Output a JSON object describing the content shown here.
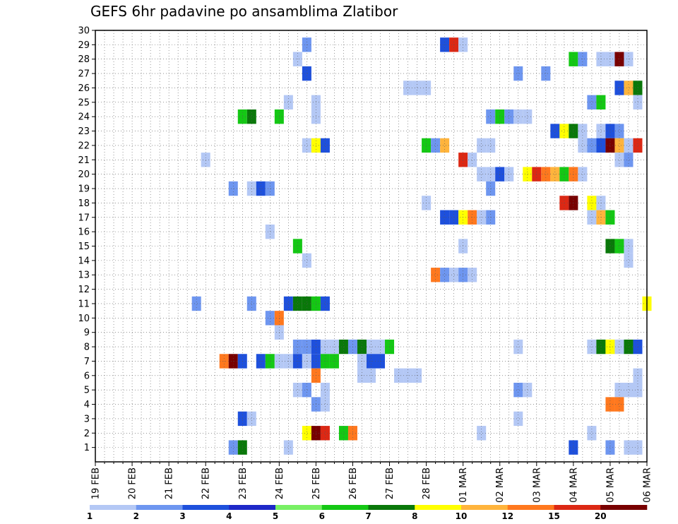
{
  "chart_data": {
    "type": "heatmap",
    "title": "GEFS 6hr padavine po ansamblima Zlatibor",
    "xlabel": "",
    "ylabel": "",
    "x_tick_labels": [
      "19 FEB",
      "20 FEB",
      "21 FEB",
      "22 FEB",
      "23 FEB",
      "24 FEB",
      "25 FEB",
      "26 FEB",
      "27 FEB",
      "28 FEB",
      "01 MAR",
      "02 MAR",
      "03 MAR",
      "04 MAR",
      "05 MAR",
      "06 MAR"
    ],
    "xlim_steps": [
      0,
      60
    ],
    "y_tick_labels": [
      "1",
      "2",
      "3",
      "4",
      "5",
      "6",
      "7",
      "8",
      "9",
      "10",
      "11",
      "12",
      "13",
      "14",
      "15",
      "16",
      "17",
      "18",
      "19",
      "20",
      "21",
      "22",
      "23",
      "24",
      "25",
      "26",
      "27",
      "28",
      "29",
      "30"
    ],
    "ylim": [
      0,
      30
    ],
    "grid": true,
    "colorbar": {
      "labels": [
        "1",
        "2",
        "3",
        "4",
        "5",
        "6",
        "7",
        "8",
        "10",
        "12",
        "15",
        "20"
      ],
      "colors": [
        "#b4c8f5",
        "#6e96f0",
        "#1e50dc",
        "#1e28c8",
        "#78f064",
        "#14c814",
        "#0a780a",
        "#ffff00",
        "#ffb43c",
        "#ff781e",
        "#dc2814",
        "#780000"
      ],
      "color_order": [
        "#b4c8f5",
        "#6e96f0",
        "#1e50dc",
        "#78f064",
        "#14c814",
        "#0a780a",
        "#ffff00",
        "#ffb43c",
        "#ff781e",
        "#dc2814",
        "#780000"
      ]
    },
    "cells_note": "each cell: [time_step_6h_from_19FEB00, member, color_index]",
    "cells": [
      [
        23,
        29,
        2
      ],
      [
        38,
        29,
        3
      ],
      [
        39,
        29,
        10
      ],
      [
        40,
        29,
        1
      ],
      [
        22,
        28,
        1
      ],
      [
        52,
        28,
        5
      ],
      [
        53,
        28,
        2
      ],
      [
        55,
        28,
        1
      ],
      [
        56,
        28,
        1
      ],
      [
        57,
        28,
        11
      ],
      [
        58,
        28,
        1
      ],
      [
        23,
        27,
        3
      ],
      [
        46,
        27,
        2
      ],
      [
        49,
        27,
        2
      ],
      [
        34,
        26,
        1
      ],
      [
        35,
        26,
        1
      ],
      [
        36,
        26,
        1
      ],
      [
        57,
        26,
        3
      ],
      [
        58,
        26,
        8
      ],
      [
        59,
        26,
        6
      ],
      [
        21,
        25,
        1
      ],
      [
        24,
        25,
        1
      ],
      [
        54,
        25,
        2
      ],
      [
        55,
        25,
        5
      ],
      [
        59,
        25,
        1
      ],
      [
        24,
        24,
        1
      ],
      [
        20,
        24,
        5
      ],
      [
        16,
        24,
        5
      ],
      [
        17,
        24,
        6
      ],
      [
        43,
        24,
        2
      ],
      [
        44,
        24,
        5
      ],
      [
        45,
        24,
        2
      ],
      [
        46,
        24,
        1
      ],
      [
        47,
        24,
        1
      ],
      [
        50,
        23,
        3
      ],
      [
        51,
        23,
        7
      ],
      [
        52,
        23,
        6
      ],
      [
        53,
        23,
        1
      ],
      [
        55,
        23,
        1
      ],
      [
        56,
        23,
        3
      ],
      [
        57,
        23,
        2
      ],
      [
        23,
        22,
        1
      ],
      [
        24,
        22,
        7
      ],
      [
        25,
        22,
        3
      ],
      [
        36,
        22,
        5
      ],
      [
        37,
        22,
        2
      ],
      [
        38,
        22,
        8
      ],
      [
        42,
        22,
        1
      ],
      [
        43,
        22,
        1
      ],
      [
        53,
        22,
        1
      ],
      [
        54,
        22,
        2
      ],
      [
        55,
        22,
        3
      ],
      [
        56,
        22,
        11
      ],
      [
        57,
        22,
        8
      ],
      [
        58,
        22,
        1
      ],
      [
        59,
        22,
        10
      ],
      [
        12,
        21,
        1
      ],
      [
        40,
        21,
        10
      ],
      [
        41,
        21,
        1
      ],
      [
        57,
        21,
        1
      ],
      [
        58,
        21,
        2
      ],
      [
        42,
        20,
        1
      ],
      [
        43,
        20,
        1
      ],
      [
        44,
        20,
        3
      ],
      [
        45,
        20,
        1
      ],
      [
        47,
        20,
        7
      ],
      [
        48,
        20,
        10
      ],
      [
        49,
        20,
        9
      ],
      [
        50,
        20,
        8
      ],
      [
        51,
        20,
        5
      ],
      [
        52,
        20,
        9
      ],
      [
        53,
        20,
        1
      ],
      [
        15,
        19,
        2
      ],
      [
        17,
        19,
        1
      ],
      [
        18,
        19,
        3
      ],
      [
        19,
        19,
        2
      ],
      [
        43,
        19,
        2
      ],
      [
        36,
        18,
        1
      ],
      [
        51,
        18,
        10
      ],
      [
        52,
        18,
        11
      ],
      [
        54,
        18,
        7
      ],
      [
        55,
        18,
        1
      ],
      [
        38,
        17,
        3
      ],
      [
        39,
        17,
        3
      ],
      [
        40,
        17,
        7
      ],
      [
        41,
        17,
        9
      ],
      [
        42,
        17,
        1
      ],
      [
        43,
        17,
        2
      ],
      [
        54,
        17,
        1
      ],
      [
        55,
        17,
        8
      ],
      [
        56,
        17,
        5
      ],
      [
        19,
        16,
        1
      ],
      [
        22,
        15,
        5
      ],
      [
        40,
        15,
        1
      ],
      [
        56,
        15,
        6
      ],
      [
        57,
        15,
        5
      ],
      [
        58,
        15,
        1
      ],
      [
        58,
        14,
        1
      ],
      [
        23,
        14,
        1
      ],
      [
        37,
        13,
        9
      ],
      [
        38,
        13,
        2
      ],
      [
        39,
        13,
        1
      ],
      [
        40,
        13,
        2
      ],
      [
        41,
        13,
        1
      ],
      [
        11,
        11,
        2
      ],
      [
        17,
        11,
        2
      ],
      [
        21,
        11,
        3
      ],
      [
        22,
        11,
        6
      ],
      [
        23,
        11,
        6
      ],
      [
        24,
        11,
        5
      ],
      [
        25,
        11,
        3
      ],
      [
        60,
        11,
        7
      ],
      [
        19,
        10,
        2
      ],
      [
        20,
        10,
        9
      ],
      [
        20,
        9,
        1
      ],
      [
        22,
        8,
        2
      ],
      [
        23,
        8,
        2
      ],
      [
        24,
        8,
        3
      ],
      [
        25,
        8,
        1
      ],
      [
        26,
        8,
        1
      ],
      [
        27,
        8,
        6
      ],
      [
        28,
        8,
        2
      ],
      [
        29,
        8,
        6
      ],
      [
        30,
        8,
        1
      ],
      [
        31,
        8,
        1
      ],
      [
        32,
        8,
        5
      ],
      [
        46,
        8,
        1
      ],
      [
        54,
        8,
        1
      ],
      [
        55,
        8,
        6
      ],
      [
        56,
        8,
        7
      ],
      [
        57,
        8,
        1
      ],
      [
        58,
        8,
        6
      ],
      [
        59,
        8,
        3
      ],
      [
        14,
        7,
        9
      ],
      [
        15,
        7,
        12
      ],
      [
        16,
        7,
        3
      ],
      [
        18,
        7,
        3
      ],
      [
        19,
        7,
        5
      ],
      [
        20,
        7,
        1
      ],
      [
        21,
        7,
        1
      ],
      [
        22,
        7,
        3
      ],
      [
        23,
        7,
        1
      ],
      [
        24,
        7,
        3
      ],
      [
        25,
        7,
        5
      ],
      [
        26,
        7,
        5
      ],
      [
        29,
        7,
        1
      ],
      [
        30,
        7,
        3
      ],
      [
        31,
        7,
        3
      ],
      [
        24,
        6,
        9
      ],
      [
        29,
        6,
        1
      ],
      [
        30,
        6,
        1
      ],
      [
        33,
        6,
        1
      ],
      [
        34,
        6,
        1
      ],
      [
        35,
        6,
        1
      ],
      [
        59,
        6,
        1
      ],
      [
        22,
        5,
        1
      ],
      [
        23,
        5,
        2
      ],
      [
        25,
        5,
        1
      ],
      [
        46,
        5,
        2
      ],
      [
        47,
        5,
        1
      ],
      [
        57,
        5,
        1
      ],
      [
        58,
        5,
        1
      ],
      [
        59,
        5,
        1
      ],
      [
        24,
        4,
        2
      ],
      [
        25,
        4,
        1
      ],
      [
        56,
        4,
        9
      ],
      [
        57,
        4,
        9
      ],
      [
        16,
        3,
        3
      ],
      [
        17,
        3,
        1
      ],
      [
        46,
        3,
        1
      ],
      [
        23,
        2,
        7
      ],
      [
        24,
        2,
        12
      ],
      [
        25,
        2,
        10
      ],
      [
        27,
        2,
        5
      ],
      [
        28,
        2,
        9
      ],
      [
        42,
        2,
        1
      ],
      [
        54,
        2,
        1
      ],
      [
        15,
        1,
        2
      ],
      [
        16,
        1,
        6
      ],
      [
        21,
        1,
        1
      ],
      [
        52,
        1,
        3
      ],
      [
        56,
        1,
        2
      ],
      [
        58,
        1,
        1
      ],
      [
        59,
        1,
        1
      ]
    ]
  }
}
